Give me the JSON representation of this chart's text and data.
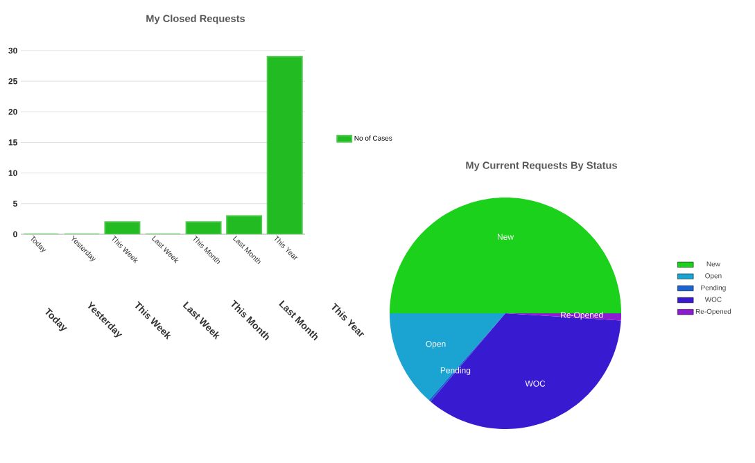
{
  "chart_data": [
    {
      "type": "bar",
      "title": "My Closed Requests",
      "categories": [
        "Today",
        "Yesterday",
        "This Week",
        "Last Week",
        "This Month",
        "Last Month",
        "This Year"
      ],
      "series": [
        {
          "name": "No of Cases",
          "color": "#22bb22",
          "values": [
            0,
            0,
            2,
            0,
            2,
            3,
            29
          ]
        }
      ],
      "ylim": [
        0,
        30
      ],
      "yticks": [
        0,
        5,
        10,
        15,
        20,
        25,
        30
      ],
      "grid": "y",
      "legend": "right",
      "annotations": [
        "Today",
        "Yesterday",
        "This Week",
        "Last Week",
        "This Month",
        "Last Month",
        "This Year"
      ]
    },
    {
      "type": "pie",
      "title": "My Current Requests By Status",
      "categories": [
        "New",
        "Open",
        "Pending",
        "WOC",
        "Re-Opened"
      ],
      "values": [
        50,
        13.5,
        0.3,
        35.2,
        1.0
      ],
      "colors": [
        "#1bd11b",
        "#1ba3d1",
        "#1b63d1",
        "#381bd1",
        "#8c1bd1"
      ],
      "legend": "right"
    }
  ]
}
